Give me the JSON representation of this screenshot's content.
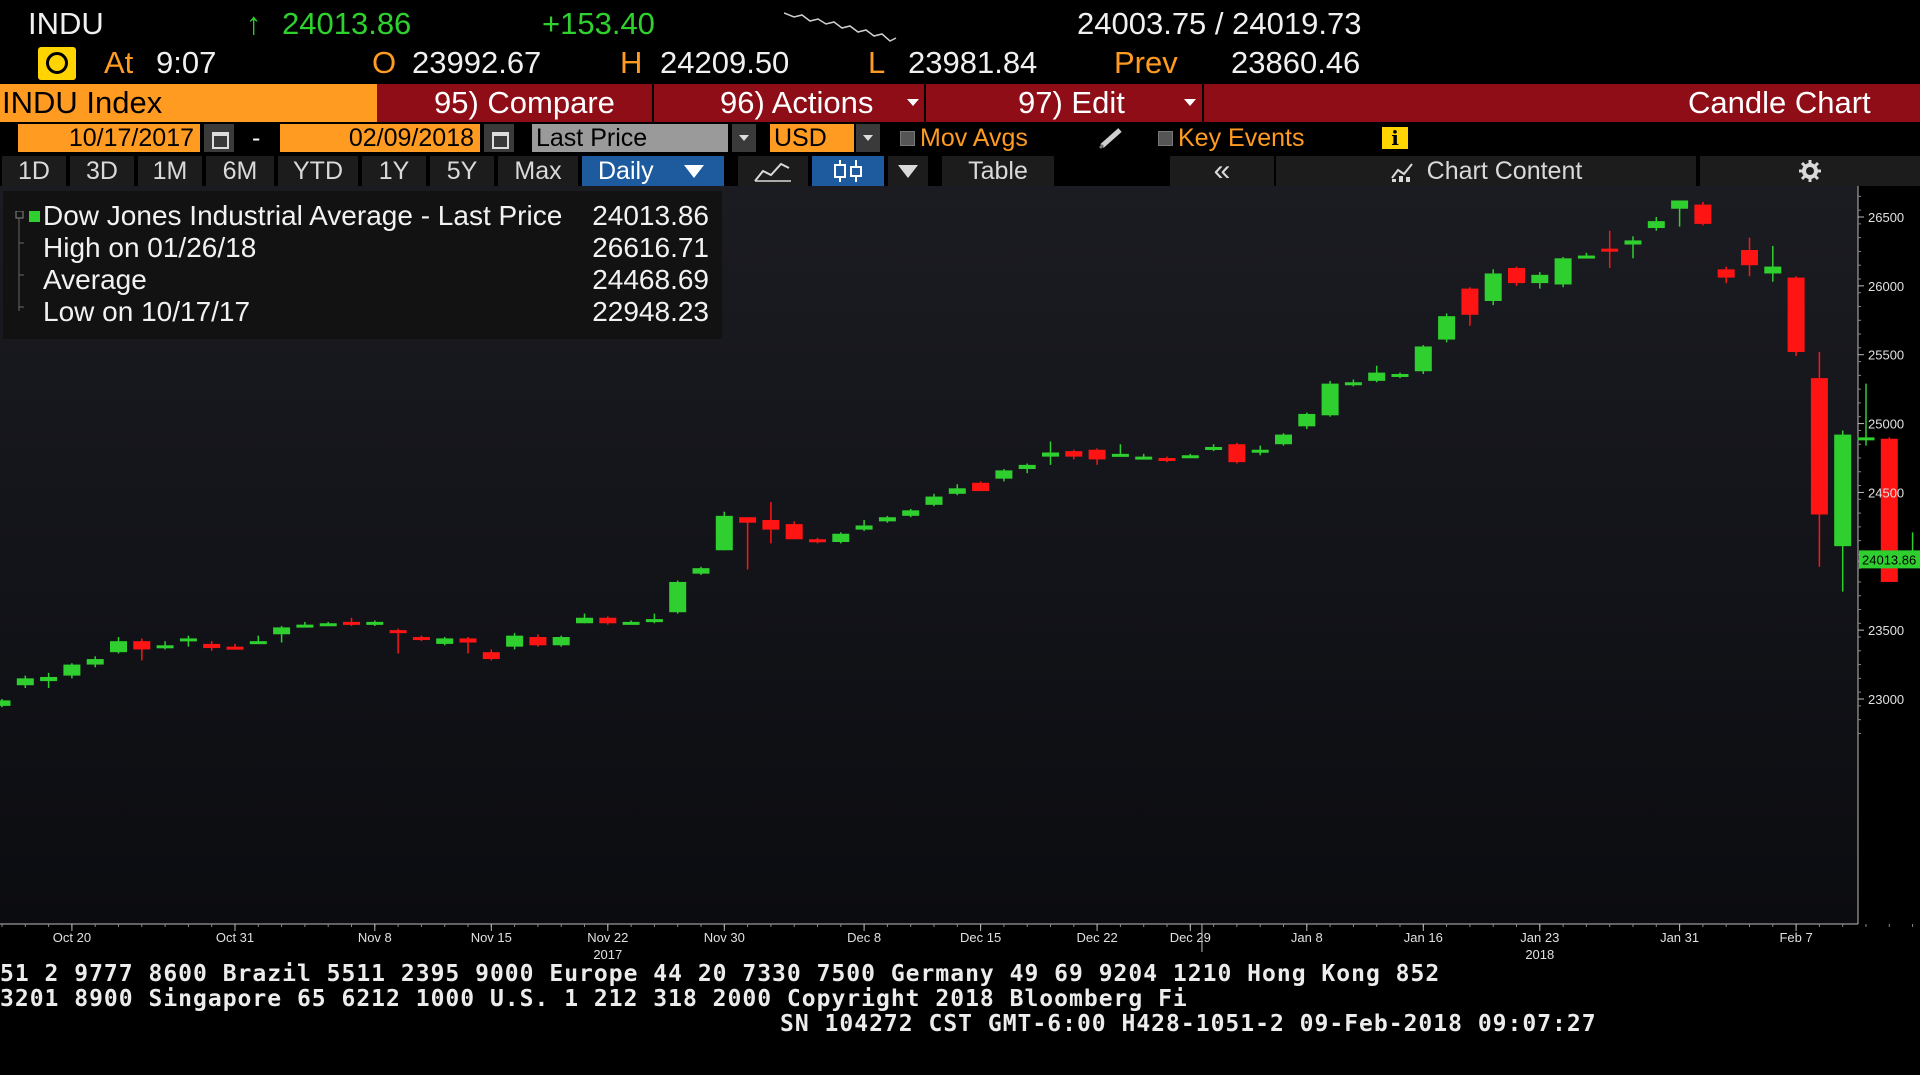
{
  "quote": {
    "ticker": "INDU",
    "arrow": "↑",
    "last": "24013.86",
    "change": "+153.40",
    "bid_ask": "24003.75 / 24019.73",
    "at_label": "At",
    "time": "9:07",
    "open_label": "O",
    "open": "23992.67",
    "high_label": "H",
    "high": "24209.50",
    "low_label": "L",
    "low": "23981.84",
    "prev_label": "Prev",
    "prev": "23860.46"
  },
  "function_bar": {
    "security": "INDU Index",
    "compare": "95) Compare",
    "actions": "96) Actions",
    "edit": "97) Edit",
    "title": "Candle Chart"
  },
  "settings": {
    "start_date": "10/17/2017",
    "dash": "-",
    "end_date": "02/09/2018",
    "field": "Last Price",
    "currency": "USD",
    "mov_avgs": "Mov Avgs",
    "key_events": "Key Events",
    "info_icon": "i"
  },
  "range_buttons": [
    "1D",
    "3D",
    "1M",
    "6M",
    "YTD",
    "1Y",
    "5Y",
    "Max"
  ],
  "period": "Daily",
  "toolbar": {
    "table": "Table",
    "back": "«",
    "chart_content": "Chart Content"
  },
  "legend": [
    {
      "label": "Dow Jones Industrial Average - Last Price",
      "value": "24013.86"
    },
    {
      "label": "High on 01/26/18",
      "value": "26616.71"
    },
    {
      "label": "Average",
      "value": "24468.69"
    },
    {
      "label": "Low on 10/17/17",
      "value": "22948.23"
    }
  ],
  "colors": {
    "up": "#2fcf2f",
    "down": "#ff1414",
    "accent": "#ff9b21",
    "bar": "#8f0d17"
  },
  "chart_data": {
    "type": "candlestick",
    "ylim": [
      22750,
      26750
    ],
    "yticks": [
      23000,
      23500,
      24000,
      24500,
      25000,
      25500,
      26000,
      26500
    ],
    "last_price_label": "24013.86",
    "last_price": 24013.86,
    "xticks": [
      {
        "label": "Oct 20",
        "i": 3
      },
      {
        "label": "Oct 31",
        "i": 10
      },
      {
        "label": "Nov 8",
        "i": 16
      },
      {
        "label": "Nov 15",
        "i": 21
      },
      {
        "label": "Nov 22",
        "i": 26
      },
      {
        "label": "Nov 30",
        "i": 31
      },
      {
        "label": "Dec 8",
        "i": 37
      },
      {
        "label": "Dec 15",
        "i": 42
      },
      {
        "label": "Dec 22",
        "i": 47
      },
      {
        "label": "Dec 29",
        "i": 51
      },
      {
        "label": "Jan 8",
        "i": 56
      },
      {
        "label": "Jan 16",
        "i": 61
      },
      {
        "label": "Jan 23",
        "i": 66
      },
      {
        "label": "Jan 31",
        "i": 72
      },
      {
        "label": "Feb 7",
        "i": 77
      }
    ],
    "year_labels": [
      {
        "label": "2017",
        "i": 26
      },
      {
        "label": "2018",
        "i": 66
      }
    ],
    "candles": [
      [
        22950,
        22990,
        22940,
        23000
      ],
      [
        23100,
        23150,
        23080,
        23170
      ],
      [
        23130,
        23160,
        23080,
        23190
      ],
      [
        23170,
        23250,
        23150,
        23260
      ],
      [
        23250,
        23290,
        23230,
        23310
      ],
      [
        23340,
        23420,
        23330,
        23450
      ],
      [
        23420,
        23360,
        23280,
        23440
      ],
      [
        23390,
        23390,
        23360,
        23420
      ],
      [
        23420,
        23440,
        23380,
        23460
      ],
      [
        23400,
        23370,
        23350,
        23420
      ],
      [
        23380,
        23370,
        23360,
        23400
      ],
      [
        23420,
        23420,
        23400,
        23460
      ],
      [
        23470,
        23520,
        23410,
        23530
      ],
      [
        23530,
        23540,
        23520,
        23560
      ],
      [
        23550,
        23550,
        23540,
        23560
      ],
      [
        23560,
        23550,
        23530,
        23590
      ],
      [
        23540,
        23560,
        23530,
        23570
      ],
      [
        23500,
        23480,
        23330,
        23510
      ],
      [
        23450,
        23430,
        23420,
        23460
      ],
      [
        23400,
        23440,
        23390,
        23450
      ],
      [
        23440,
        23410,
        23330,
        23450
      ],
      [
        23340,
        23290,
        23280,
        23360
      ],
      [
        23380,
        23460,
        23360,
        23480
      ],
      [
        23450,
        23390,
        23380,
        23470
      ],
      [
        23390,
        23450,
        23380,
        23460
      ],
      [
        23550,
        23590,
        23550,
        23620
      ],
      [
        23590,
        23550,
        23540,
        23600
      ],
      [
        23560,
        23560,
        23550,
        23570
      ],
      [
        23560,
        23580,
        23550,
        23620
      ],
      [
        23630,
        23850,
        23620,
        23860
      ],
      [
        23910,
        23950,
        23900,
        23960
      ],
      [
        24080,
        24330,
        24080,
        24360
      ],
      [
        24320,
        24280,
        23940,
        24310
      ],
      [
        24300,
        24230,
        24130,
        24430
      ],
      [
        24270,
        24160,
        24160,
        24290
      ],
      [
        24160,
        24140,
        24130,
        24170
      ],
      [
        24140,
        24200,
        24130,
        24210
      ],
      [
        24230,
        24260,
        24220,
        24300
      ],
      [
        24290,
        24320,
        24280,
        24330
      ],
      [
        24330,
        24370,
        24320,
        24380
      ],
      [
        24410,
        24470,
        24400,
        24490
      ],
      [
        24490,
        24530,
        24480,
        24560
      ],
      [
        24570,
        24510,
        24520,
        24580
      ],
      [
        24600,
        24660,
        24580,
        24670
      ],
      [
        24670,
        24700,
        24640,
        24710
      ],
      [
        24760,
        24790,
        24700,
        24870
      ],
      [
        24800,
        24760,
        24740,
        24810
      ],
      [
        24810,
        24740,
        24700,
        24820
      ],
      [
        24780,
        24780,
        24760,
        24850
      ],
      [
        24760,
        24760,
        24750,
        24780
      ],
      [
        24750,
        24730,
        24720,
        24760
      ],
      [
        24760,
        24770,
        24750,
        24780
      ],
      [
        24810,
        24830,
        24800,
        24850
      ],
      [
        24850,
        24720,
        24710,
        24860
      ],
      [
        24790,
        24810,
        24770,
        24840
      ],
      [
        24850,
        24920,
        24840,
        24930
      ],
      [
        24980,
        25070,
        24960,
        25080
      ],
      [
        25060,
        25290,
        25050,
        25310
      ],
      [
        25290,
        25300,
        25270,
        25320
      ],
      [
        25310,
        25370,
        25300,
        25420
      ],
      [
        25360,
        25360,
        25330,
        25370
      ],
      [
        25380,
        25560,
        25360,
        25570
      ],
      [
        25610,
        25780,
        25590,
        25800
      ],
      [
        25980,
        25790,
        25710,
        25990
      ],
      [
        25890,
        26090,
        25860,
        26120
      ],
      [
        26130,
        26020,
        26000,
        26140
      ],
      [
        26020,
        26080,
        25980,
        26100
      ],
      [
        26010,
        26200,
        25990,
        26210
      ],
      [
        26210,
        26220,
        26200,
        26240
      ],
      [
        26270,
        26250,
        26130,
        26400
      ],
      [
        26300,
        26330,
        26200,
        26360
      ],
      [
        26420,
        26470,
        26400,
        26500
      ],
      [
        26560,
        26620,
        26430,
        26620
      ],
      [
        26590,
        26450,
        26440,
        26610
      ],
      [
        26120,
        26060,
        26020,
        26140
      ],
      [
        26260,
        26150,
        26070,
        26350
      ],
      [
        26090,
        26140,
        26030,
        26290
      ],
      [
        26060,
        25520,
        25490,
        26070
      ],
      [
        25330,
        24340,
        23960,
        25520
      ],
      [
        24110,
        24920,
        23780,
        24950
      ],
      [
        24900,
        24900,
        24840,
        25290
      ],
      [
        24890,
        23850,
        23850,
        24900
      ],
      [
        23990,
        24010,
        23980,
        24210
      ]
    ]
  },
  "footer": {
    "line1": "51 2 9777 8600 Brazil 5511 2395 9000 Europe 44 20 7330 7500 Germany 49 69 9204 1210 Hong Kong 852",
    "line2": "3201 8900      Singapore 65 6212 1000      U.S. 1 212 318 2000       Copyright 2018 Bloomberg Fi",
    "line3": "SN 104272 CST  GMT-6:00 H428-1051-2 09-Feb-2018 09:07:27"
  }
}
